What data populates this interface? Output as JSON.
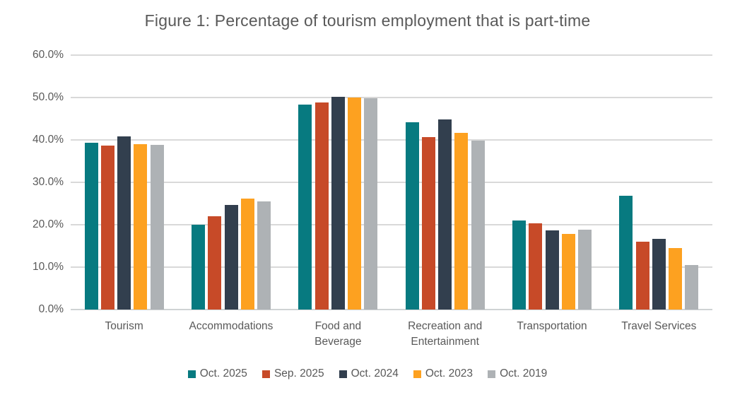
{
  "chart_data": {
    "type": "bar",
    "title": "Figure 1: Percentage of tourism employment that is part-time",
    "xlabel": "",
    "ylabel": "",
    "ylim": [
      0,
      60
    ],
    "ytick_step": 10,
    "ytick_labels_top_to_bottom": [
      "60.0%",
      "50.0%",
      "40.0%",
      "30.0%",
      "20.0%",
      "10.0%",
      "0.0%"
    ],
    "grid": "horizontal",
    "legend_position": "bottom",
    "categories": [
      "Tourism",
      "Accommodations",
      "Food and Beverage",
      "Recreation and Entertainment",
      "Transportation",
      "Travel Services"
    ],
    "category_label_lines": [
      [
        "Tourism"
      ],
      [
        "Accommodations"
      ],
      [
        "Food and",
        "Beverage"
      ],
      [
        "Recreation and",
        "Entertainment"
      ],
      [
        "Transportation"
      ],
      [
        "Travel Services"
      ]
    ],
    "series": [
      {
        "name": "Oct. 2025",
        "color": "#077a80",
        "values": [
          39.3,
          20.0,
          48.3,
          44.1,
          21.0,
          26.9
        ]
      },
      {
        "name": "Sep. 2025",
        "color": "#c74a28",
        "values": [
          38.6,
          22.0,
          48.9,
          40.7,
          20.4,
          16.0
        ]
      },
      {
        "name": "Oct. 2024",
        "color": "#323f4e",
        "values": [
          40.8,
          24.7,
          50.2,
          44.8,
          18.7,
          16.6
        ]
      },
      {
        "name": "Oct. 2023",
        "color": "#fda120",
        "values": [
          39.0,
          26.2,
          50.0,
          41.6,
          17.8,
          14.5
        ]
      },
      {
        "name": "Oct. 2019",
        "color": "#aeb2b5",
        "values": [
          38.8,
          25.5,
          49.8,
          39.9,
          18.9,
          10.5
        ]
      }
    ]
  },
  "style_colors": {
    "text": "#595959",
    "gridline": "#d9d9d9",
    "axis_line": "#cfd3d4",
    "background": "#ffffff"
  }
}
